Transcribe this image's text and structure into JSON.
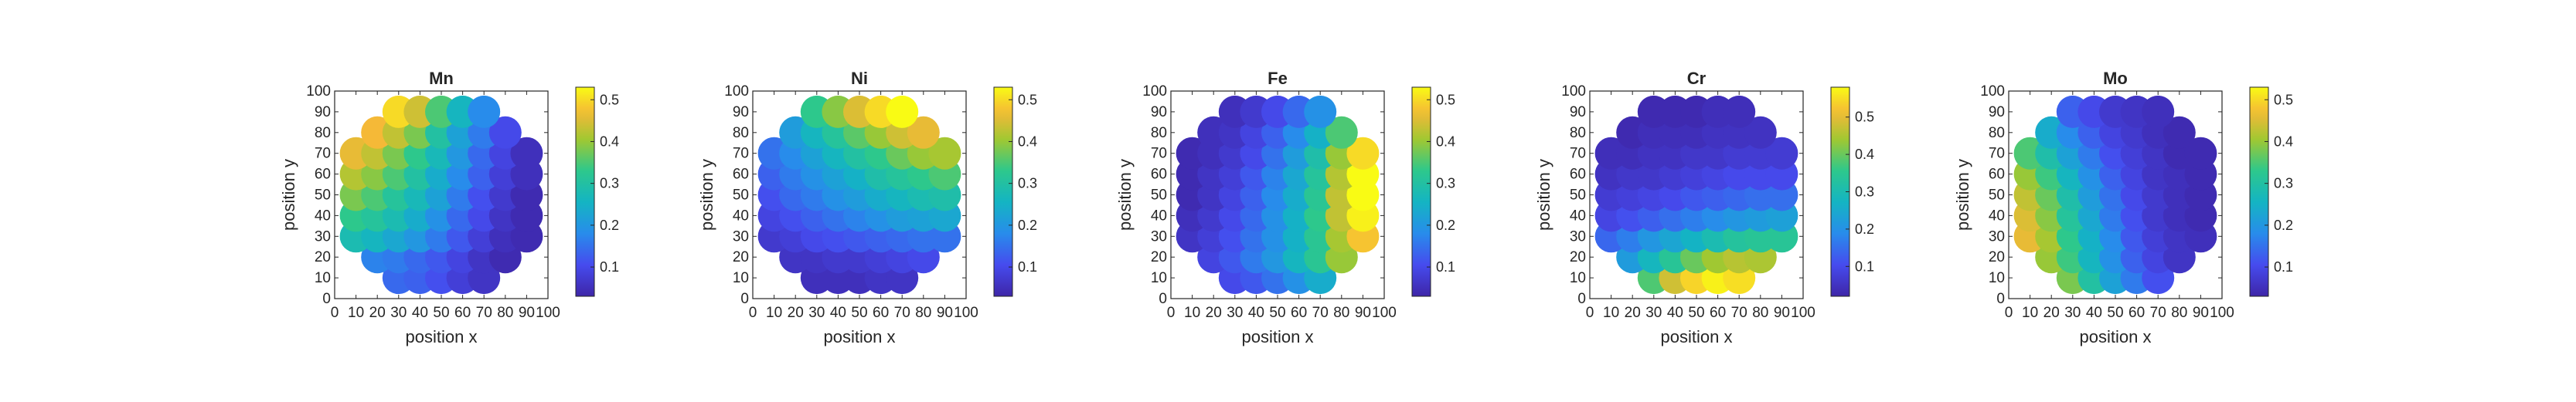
{
  "chart_data": [
    {
      "type": "heatmap",
      "title": "Mn",
      "xlabel": "position x",
      "ylabel": "position y",
      "xlim": [
        0,
        100
      ],
      "ylim": [
        0,
        100
      ],
      "xticks": [
        "0",
        "10",
        "20",
        "30",
        "40",
        "50",
        "60",
        "70",
        "80",
        "90",
        "100"
      ],
      "yticks": [
        "0",
        "10",
        "20",
        "30",
        "40",
        "50",
        "60",
        "70",
        "80",
        "90",
        "100"
      ],
      "colorbar": {
        "ticks": [
          "0.1",
          "0.2",
          "0.3",
          "0.4",
          "0.5"
        ],
        "tick_values": [
          0.1,
          0.2,
          0.3,
          0.4,
          0.5
        ],
        "range": [
          0.03,
          0.53
        ]
      },
      "grid": false,
      "x": [
        10,
        20,
        30,
        40,
        50,
        60,
        70,
        80,
        90
      ],
      "y": [
        10,
        20,
        30,
        40,
        50,
        60,
        70,
        80,
        90
      ],
      "values": [
        [
          null,
          null,
          0.14,
          0.13,
          0.11,
          0.08,
          0.06,
          null,
          null
        ],
        [
          null,
          0.17,
          0.16,
          0.14,
          0.12,
          0.09,
          0.06,
          0.04,
          null
        ],
        [
          0.28,
          0.26,
          0.23,
          0.2,
          0.16,
          0.12,
          0.08,
          0.05,
          0.04
        ],
        [
          0.33,
          0.31,
          0.28,
          0.24,
          0.19,
          0.14,
          0.1,
          0.06,
          0.04
        ],
        [
          0.38,
          0.35,
          0.31,
          0.27,
          0.22,
          0.16,
          0.11,
          0.07,
          0.04
        ],
        [
          0.42,
          0.39,
          0.35,
          0.3,
          0.24,
          0.18,
          0.13,
          0.08,
          0.05
        ],
        [
          0.46,
          0.43,
          0.38,
          0.33,
          0.27,
          0.2,
          0.14,
          0.09,
          0.05
        ],
        [
          null,
          0.47,
          0.43,
          0.38,
          0.3,
          0.22,
          0.16,
          0.1,
          null
        ],
        [
          null,
          null,
          0.5,
          0.44,
          0.35,
          0.26,
          0.18,
          null,
          null
        ]
      ]
    },
    {
      "type": "heatmap",
      "title": "Ni",
      "xlabel": "position x",
      "ylabel": "position y",
      "xlim": [
        0,
        100
      ],
      "ylim": [
        0,
        100
      ],
      "xticks": [
        "0",
        "10",
        "20",
        "30",
        "40",
        "50",
        "60",
        "70",
        "80",
        "90",
        "100"
      ],
      "yticks": [
        "0",
        "10",
        "20",
        "30",
        "40",
        "50",
        "60",
        "70",
        "80",
        "90",
        "100"
      ],
      "colorbar": {
        "ticks": [
          "0.1",
          "0.2",
          "0.3",
          "0.4",
          "0.5"
        ],
        "tick_values": [
          0.1,
          0.2,
          0.3,
          0.4,
          0.5
        ],
        "range": [
          0.03,
          0.53
        ]
      },
      "grid": false,
      "x": [
        10,
        20,
        30,
        40,
        50,
        60,
        70,
        80,
        90
      ],
      "y": [
        10,
        20,
        30,
        40,
        50,
        60,
        70,
        80,
        90
      ],
      "values": [
        [
          null,
          null,
          0.05,
          0.05,
          0.05,
          0.06,
          0.06,
          null,
          null
        ],
        [
          null,
          0.06,
          0.06,
          0.07,
          0.07,
          0.08,
          0.09,
          0.1,
          null
        ],
        [
          0.07,
          0.08,
          0.1,
          0.11,
          0.12,
          0.13,
          0.14,
          0.15,
          0.15
        ],
        [
          0.09,
          0.11,
          0.13,
          0.15,
          0.17,
          0.19,
          0.21,
          0.22,
          0.23
        ],
        [
          0.11,
          0.14,
          0.16,
          0.19,
          0.21,
          0.24,
          0.26,
          0.28,
          0.29
        ],
        [
          0.13,
          0.16,
          0.19,
          0.22,
          0.25,
          0.29,
          0.31,
          0.33,
          0.35
        ],
        [
          0.15,
          0.18,
          0.22,
          0.26,
          0.3,
          0.33,
          0.37,
          0.4,
          0.41
        ],
        [
          null,
          0.21,
          0.26,
          0.31,
          0.36,
          0.4,
          0.44,
          0.46,
          null
        ],
        [
          null,
          null,
          0.33,
          0.39,
          0.45,
          0.5,
          0.53,
          null,
          null
        ]
      ]
    },
    {
      "type": "heatmap",
      "title": "Fe",
      "xlabel": "position x",
      "ylabel": "position y",
      "xlim": [
        0,
        100
      ],
      "ylim": [
        0,
        100
      ],
      "xticks": [
        "0",
        "10",
        "20",
        "30",
        "40",
        "50",
        "60",
        "70",
        "80",
        "90",
        "100"
      ],
      "yticks": [
        "0",
        "10",
        "20",
        "30",
        "40",
        "50",
        "60",
        "70",
        "80",
        "90",
        "100"
      ],
      "colorbar": {
        "ticks": [
          "0.1",
          "0.2",
          "0.3",
          "0.4",
          "0.5"
        ],
        "tick_values": [
          0.1,
          0.2,
          0.3,
          0.4,
          0.5
        ],
        "range": [
          0.03,
          0.53
        ]
      },
      "grid": false,
      "x": [
        10,
        20,
        30,
        40,
        50,
        60,
        70,
        80,
        90
      ],
      "y": [
        10,
        20,
        30,
        40,
        50,
        60,
        70,
        80,
        90
      ],
      "values": [
        [
          null,
          null,
          0.1,
          0.12,
          0.15,
          0.19,
          0.24,
          null,
          null
        ],
        [
          null,
          0.09,
          0.12,
          0.16,
          0.2,
          0.26,
          0.32,
          0.4,
          null
        ],
        [
          0.06,
          0.08,
          0.11,
          0.15,
          0.19,
          0.25,
          0.32,
          0.41,
          0.48
        ],
        [
          0.05,
          0.07,
          0.1,
          0.14,
          0.19,
          0.25,
          0.33,
          0.43,
          0.52
        ],
        [
          0.04,
          0.06,
          0.09,
          0.13,
          0.18,
          0.24,
          0.32,
          0.43,
          0.53
        ],
        [
          0.04,
          0.06,
          0.08,
          0.12,
          0.17,
          0.23,
          0.31,
          0.42,
          0.53
        ],
        [
          0.04,
          0.05,
          0.07,
          0.1,
          0.15,
          0.21,
          0.29,
          0.4,
          0.5
        ],
        [
          null,
          0.05,
          0.06,
          0.09,
          0.13,
          0.18,
          0.25,
          0.35,
          null
        ],
        [
          null,
          null,
          0.05,
          0.07,
          0.1,
          0.14,
          0.19,
          null,
          null
        ]
      ]
    },
    {
      "type": "heatmap",
      "title": "Cr",
      "xlabel": "position x",
      "ylabel": "position y",
      "xlim": [
        0,
        100
      ],
      "ylim": [
        0,
        100
      ],
      "xticks": [
        "0",
        "10",
        "20",
        "30",
        "40",
        "50",
        "60",
        "70",
        "80",
        "90",
        "100"
      ],
      "yticks": [
        "0",
        "10",
        "20",
        "30",
        "40",
        "50",
        "60",
        "70",
        "80",
        "90",
        "100"
      ],
      "colorbar": {
        "ticks": [
          "0.1",
          "0.2",
          "0.3",
          "0.4",
          "0.5"
        ],
        "tick_values": [
          0.1,
          0.2,
          0.3,
          0.4,
          0.5
        ],
        "range": [
          0.02,
          0.58
        ]
      },
      "grid": false,
      "x": [
        10,
        20,
        30,
        40,
        50,
        60,
        70,
        80,
        90
      ],
      "y": [
        10,
        20,
        30,
        40,
        50,
        60,
        70,
        80,
        90
      ],
      "values": [
        [
          null,
          null,
          0.38,
          0.48,
          0.54,
          0.57,
          0.55,
          null,
          null
        ],
        [
          null,
          0.22,
          0.28,
          0.34,
          0.4,
          0.44,
          0.46,
          0.45,
          null
        ],
        [
          0.14,
          0.17,
          0.21,
          0.24,
          0.27,
          0.3,
          0.33,
          0.34,
          0.34
        ],
        [
          0.09,
          0.11,
          0.13,
          0.15,
          0.17,
          0.19,
          0.21,
          0.22,
          0.23
        ],
        [
          0.07,
          0.08,
          0.09,
          0.1,
          0.12,
          0.13,
          0.14,
          0.15,
          0.15
        ],
        [
          0.05,
          0.06,
          0.06,
          0.07,
          0.08,
          0.09,
          0.1,
          0.1,
          0.1
        ],
        [
          0.04,
          0.04,
          0.05,
          0.05,
          0.06,
          0.06,
          0.07,
          0.07,
          0.07
        ],
        [
          null,
          0.03,
          0.04,
          0.04,
          0.04,
          0.05,
          0.05,
          0.05,
          null
        ],
        [
          null,
          null,
          0.03,
          0.03,
          0.03,
          0.04,
          0.04,
          null,
          null
        ]
      ]
    },
    {
      "type": "heatmap",
      "title": "Mo",
      "xlabel": "position x",
      "ylabel": "position y",
      "xlim": [
        0,
        100
      ],
      "ylim": [
        0,
        100
      ],
      "xticks": [
        "0",
        "10",
        "20",
        "30",
        "40",
        "50",
        "60",
        "70",
        "80",
        "90",
        "100"
      ],
      "yticks": [
        "0",
        "10",
        "20",
        "30",
        "40",
        "50",
        "60",
        "70",
        "80",
        "90",
        "100"
      ],
      "colorbar": {
        "ticks": [
          "0.1",
          "0.2",
          "0.3",
          "0.4",
          "0.5"
        ],
        "tick_values": [
          0.1,
          0.2,
          0.3,
          0.4,
          0.5
        ],
        "range": [
          0.03,
          0.53
        ]
      },
      "grid": false,
      "x": [
        10,
        20,
        30,
        40,
        50,
        60,
        70,
        80,
        90
      ],
      "y": [
        10,
        20,
        30,
        40,
        50,
        60,
        70,
        80,
        90
      ],
      "values": [
        [
          null,
          null,
          0.38,
          0.3,
          0.22,
          0.16,
          0.11,
          null,
          null
        ],
        [
          null,
          0.4,
          0.34,
          0.26,
          0.19,
          0.13,
          0.09,
          0.06,
          null
        ],
        [
          0.46,
          0.41,
          0.33,
          0.25,
          0.18,
          0.12,
          0.08,
          0.06,
          0.05
        ],
        [
          0.45,
          0.39,
          0.31,
          0.23,
          0.16,
          0.11,
          0.07,
          0.05,
          0.04
        ],
        [
          0.43,
          0.37,
          0.29,
          0.21,
          0.15,
          0.1,
          0.07,
          0.05,
          0.04
        ],
        [
          0.4,
          0.34,
          0.26,
          0.19,
          0.13,
          0.09,
          0.06,
          0.05,
          0.04
        ],
        [
          0.35,
          0.29,
          0.22,
          0.16,
          0.11,
          0.08,
          0.06,
          0.04,
          0.04
        ],
        [
          null,
          0.24,
          0.18,
          0.13,
          0.09,
          0.07,
          0.05,
          0.04,
          null
        ],
        [
          null,
          null,
          0.13,
          0.1,
          0.07,
          0.06,
          0.05,
          null,
          null
        ]
      ]
    }
  ]
}
